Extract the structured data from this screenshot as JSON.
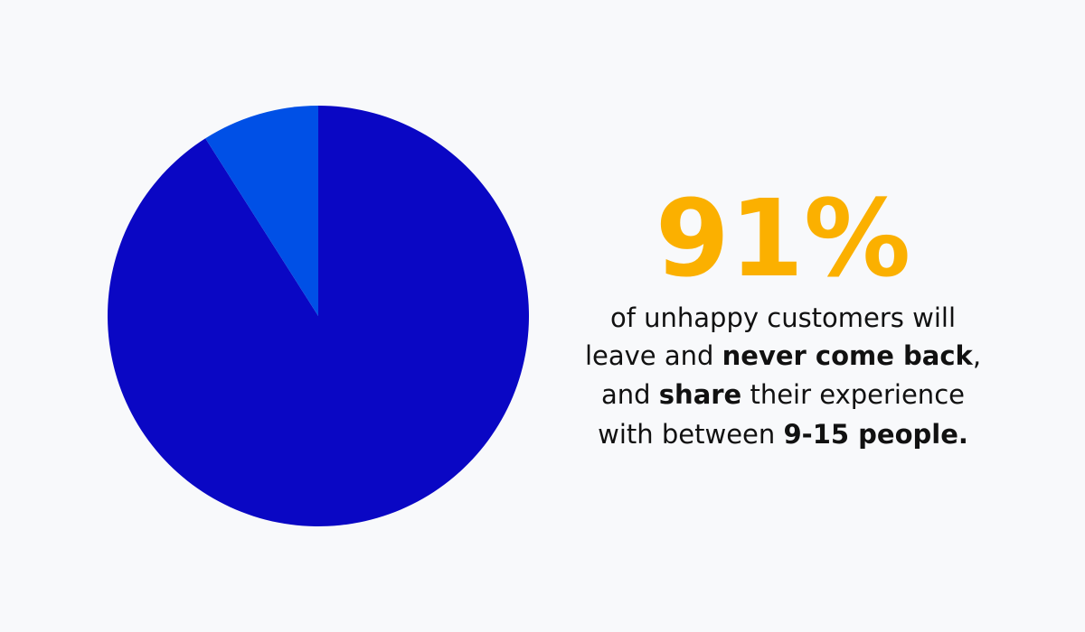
{
  "chart_data": {
    "type": "pie",
    "values": [
      91,
      9
    ],
    "colors": [
      "#0a07c4",
      "#0050e6"
    ],
    "start_angle": "top",
    "direction": "clockwise",
    "headline": "91%",
    "headline_color": "#fbb000",
    "body": [
      [
        {
          "text": "of unhappy customers will",
          "bold": false
        }
      ],
      [
        {
          "text": "leave and ",
          "bold": false
        },
        {
          "text": "never come back",
          "bold": true
        },
        {
          "text": ",",
          "bold": false
        }
      ],
      [
        {
          "text": "and ",
          "bold": false
        },
        {
          "text": "share",
          "bold": true
        },
        {
          "text": " their experience",
          "bold": false
        }
      ],
      [
        {
          "text": "with between ",
          "bold": false
        },
        {
          "text": "9-15 people.",
          "bold": true
        }
      ]
    ]
  }
}
